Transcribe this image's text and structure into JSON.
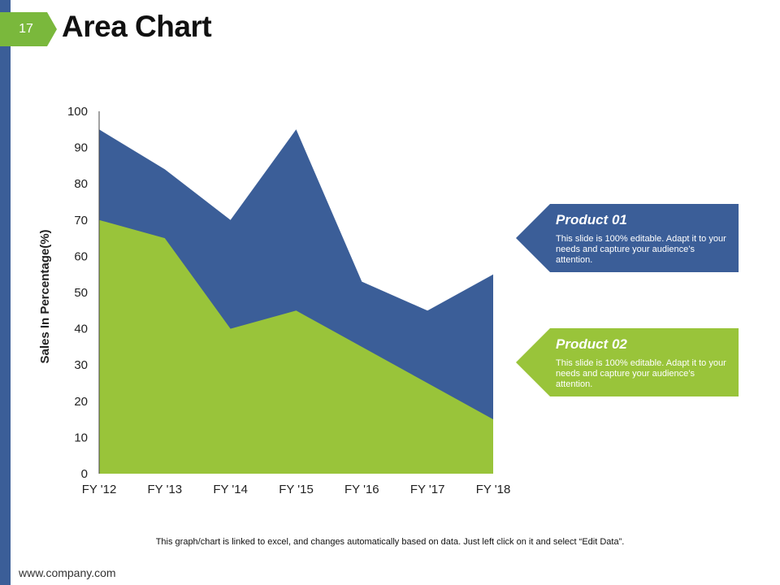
{
  "slide": {
    "page_number": "17",
    "title": "Area Chart",
    "footnote": "This graph/chart is linked to excel, and changes automatically based on data. Just left click on it and select “Edit Data”.",
    "website": "www.company.com"
  },
  "colors": {
    "product01": "#3b5e98",
    "product02": "#99c43a",
    "accent_bar": "#3b5e98",
    "badge": "#7ab83c"
  },
  "callouts": [
    {
      "title": "Product 01",
      "text": "This slide is 100% editable. Adapt it to your needs and capture your audience’s attention."
    },
    {
      "title": "Product 02",
      "text": "This slide is 100% editable. Adapt it to your needs and capture your audience’s attention."
    }
  ],
  "chart_data": {
    "type": "area",
    "title": "",
    "xlabel": "",
    "ylabel": "Sales In Percentage(%)",
    "categories": [
      "FY '12",
      "FY '13",
      "FY '14",
      "FY '15",
      "FY '16",
      "FY '17",
      "FY '18"
    ],
    "ylim": [
      0,
      100
    ],
    "yticks": [
      0,
      10,
      20,
      30,
      40,
      50,
      60,
      70,
      80,
      90,
      100
    ],
    "series": [
      {
        "name": "Product 01",
        "values": [
          95,
          84,
          70,
          95,
          53,
          45,
          55
        ]
      },
      {
        "name": "Product 02",
        "values": [
          70,
          65,
          40,
          45,
          35,
          25,
          15
        ]
      }
    ],
    "grid": false,
    "legend": "right"
  }
}
